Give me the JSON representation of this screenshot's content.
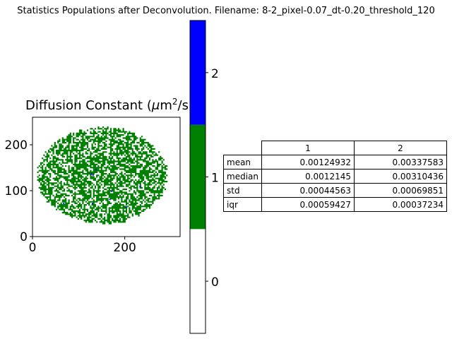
{
  "suptitle": "Statistics Populations after Deconvolution. Filename: 8-2_pixel-0.07_dt-0.20_threshold_120",
  "chart_data": [
    {
      "type": "heatmap",
      "title_main": "Diffusion Constant (",
      "title_mu": "μ",
      "title_unit": "m",
      "title_exp": "2",
      "title_end": "/s)",
      "x_ticks": [
        "0",
        "200"
      ],
      "y_ticks": [
        "0",
        "100",
        "200"
      ],
      "xlim": [
        0,
        320
      ],
      "ylim": [
        0,
        260
      ],
      "colors": {
        "population_1": "#008000",
        "population_2": "#0000ff",
        "background": "#ffffff"
      }
    },
    {
      "type": "colorbar",
      "levels": [
        "0",
        "1",
        "2"
      ],
      "colors": [
        "#ffffff",
        "#008000",
        "#0000ff"
      ]
    },
    {
      "type": "table",
      "columns": [
        "1",
        "2"
      ],
      "rows": [
        {
          "label": "mean",
          "values": [
            "0.00124932",
            "0.00337583"
          ]
        },
        {
          "label": "median",
          "values": [
            "0.0012145",
            "0.00310436"
          ]
        },
        {
          "label": "std",
          "values": [
            "0.00044563",
            "0.00069851"
          ]
        },
        {
          "label": "iqr",
          "values": [
            "0.00059427",
            "0.00037234"
          ]
        }
      ]
    }
  ]
}
